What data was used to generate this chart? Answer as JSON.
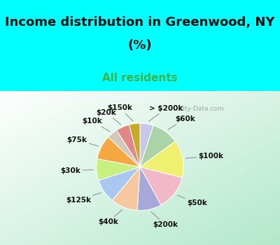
{
  "title_line1": "Income distribution in Greenwood, NY",
  "title_line2": "(%)",
  "subtitle": "All residents",
  "title_fontsize": 13,
  "subtitle_fontsize": 11,
  "cyan_bg": "#00FFFF",
  "labels": [
    "> $200k",
    "$60k",
    "$100k",
    "$50k",
    "$200k",
    "$40k",
    "$125k",
    "$30k",
    "$75k",
    "$10k",
    "$20k",
    "$150k"
  ],
  "values": [
    5,
    10,
    14,
    13,
    9,
    10,
    9,
    8,
    9,
    4,
    5,
    4
  ],
  "colors": [
    "#c8c8e8",
    "#aad4a8",
    "#f0f070",
    "#f0b8c8",
    "#a8a8d8",
    "#f5c8a0",
    "#a8c8f0",
    "#c8f080",
    "#f5a840",
    "#d4c8b8",
    "#e08888",
    "#c8a828"
  ],
  "watermark": "City-Data.com",
  "label_fontsize": 7.5,
  "title_color": "#111111",
  "subtitle_color": "#3ab54a"
}
